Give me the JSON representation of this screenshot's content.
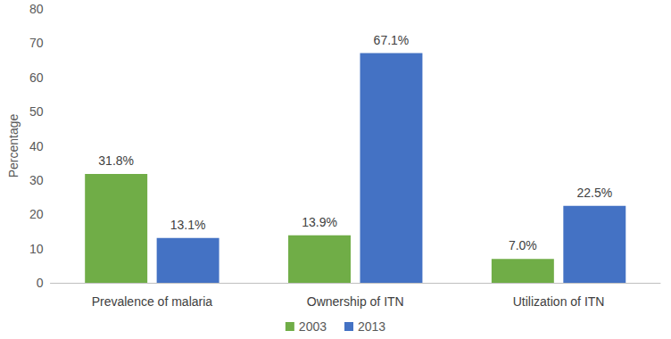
{
  "chart_data": {
    "type": "bar",
    "y_label": "Percentage",
    "categories": [
      "Prevalence of malaria",
      "Ownership of ITN",
      "Utilization of ITN"
    ],
    "series": [
      {
        "name": "2003",
        "color": "#70ad47",
        "values": [
          31.8,
          13.9,
          7.0
        ],
        "value_labels": [
          "31.8%",
          "13.9%",
          "7.0%"
        ]
      },
      {
        "name": "2013",
        "color": "#4472c4",
        "values": [
          13.1,
          67.1,
          22.5
        ],
        "value_labels": [
          "13.1%",
          "67.1%",
          "22.5%"
        ]
      }
    ],
    "ylim": [
      0,
      80
    ],
    "yticks": [
      0,
      10,
      20,
      30,
      40,
      50,
      60,
      70,
      80
    ],
    "grid": false,
    "legend": "bottom",
    "data_labels": true
  }
}
